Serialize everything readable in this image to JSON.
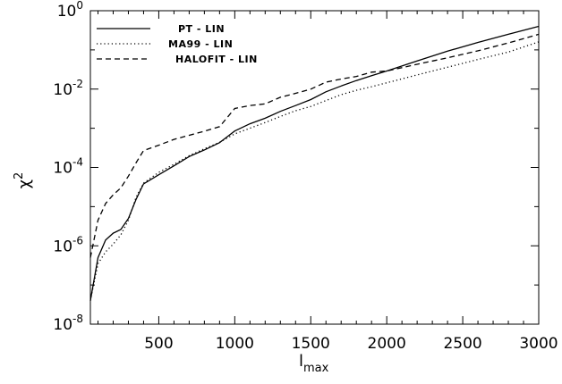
{
  "chart_data": {
    "type": "line",
    "title": "",
    "xlabel": "l",
    "xlabel_subscript": "max",
    "ylabel": "χ",
    "ylabel_superscript": "2",
    "xlim": [
      50,
      3000
    ],
    "ylim": [
      1e-08,
      1
    ],
    "yscale": "log",
    "grid": false,
    "legend_position": "top-left",
    "x_ticks": [
      {
        "value": 500,
        "label": "500"
      },
      {
        "value": 1000,
        "label": "1000"
      },
      {
        "value": 1500,
        "label": "1500"
      },
      {
        "value": 2000,
        "label": "2000"
      },
      {
        "value": 2500,
        "label": "2500"
      },
      {
        "value": 3000,
        "label": "3000"
      }
    ],
    "y_ticks": [
      {
        "value": 1e-08,
        "base": "10",
        "exp": "-8"
      },
      {
        "value": 1e-06,
        "base": "10",
        "exp": "-6"
      },
      {
        "value": 0.0001,
        "base": "10",
        "exp": "-4"
      },
      {
        "value": 0.01,
        "base": "10",
        "exp": "-2"
      },
      {
        "value": 1,
        "base": "10",
        "exp": "0"
      }
    ],
    "series": [
      {
        "name": "PT - LIN",
        "style": "solid",
        "x": [
          50,
          100,
          150,
          200,
          250,
          300,
          350,
          400,
          500,
          600,
          700,
          800,
          900,
          1000,
          1100,
          1200,
          1300,
          1400,
          1500,
          1600,
          1700,
          1800,
          1900,
          2000,
          2200,
          2400,
          2600,
          2800,
          3000
        ],
        "y": [
          4e-08,
          5e-07,
          1.4e-06,
          2.1e-06,
          2.6e-06,
          5e-06,
          1.5e-05,
          3.8e-05,
          6.5e-05,
          0.00011,
          0.00019,
          0.00028,
          0.00043,
          0.00085,
          0.0013,
          0.0018,
          0.0027,
          0.0038,
          0.0054,
          0.0085,
          0.012,
          0.0165,
          0.022,
          0.029,
          0.052,
          0.093,
          0.155,
          0.25,
          0.4
        ]
      },
      {
        "name": "MA99 - LIN",
        "style": "dotted",
        "x": [
          50,
          100,
          150,
          200,
          250,
          300,
          350,
          400,
          500,
          600,
          700,
          800,
          900,
          1000,
          1100,
          1200,
          1300,
          1400,
          1500,
          1600,
          1700,
          1800,
          1900,
          2000,
          2200,
          2400,
          2600,
          2800,
          3000
        ],
        "y": [
          4e-08,
          3.5e-07,
          7e-07,
          1.1e-06,
          1.9e-06,
          4.5e-06,
          1.7e-05,
          4e-05,
          7.5e-05,
          0.00012,
          0.0002,
          0.0003,
          0.00044,
          0.00072,
          0.001,
          0.0014,
          0.002,
          0.0028,
          0.0036,
          0.0051,
          0.0072,
          0.0093,
          0.0115,
          0.0145,
          0.023,
          0.036,
          0.057,
          0.088,
          0.16
        ]
      },
      {
        "name": "HALOFIT - LIN",
        "style": "dashed",
        "x": [
          50,
          100,
          150,
          200,
          250,
          300,
          350,
          400,
          500,
          600,
          700,
          800,
          900,
          1000,
          1100,
          1200,
          1300,
          1400,
          1500,
          1600,
          1700,
          1800,
          1900,
          2000,
          2200,
          2400,
          2600,
          2800,
          3000
        ],
        "y": [
          5e-07,
          4.5e-06,
          1.2e-05,
          2e-05,
          3e-05,
          6e-05,
          0.00013,
          0.00027,
          0.00037,
          0.00052,
          0.00066,
          0.00084,
          0.0011,
          0.0032,
          0.0038,
          0.0042,
          0.0062,
          0.0078,
          0.01,
          0.015,
          0.018,
          0.021,
          0.027,
          0.029,
          0.043,
          0.063,
          0.095,
          0.15,
          0.25
        ]
      }
    ]
  }
}
